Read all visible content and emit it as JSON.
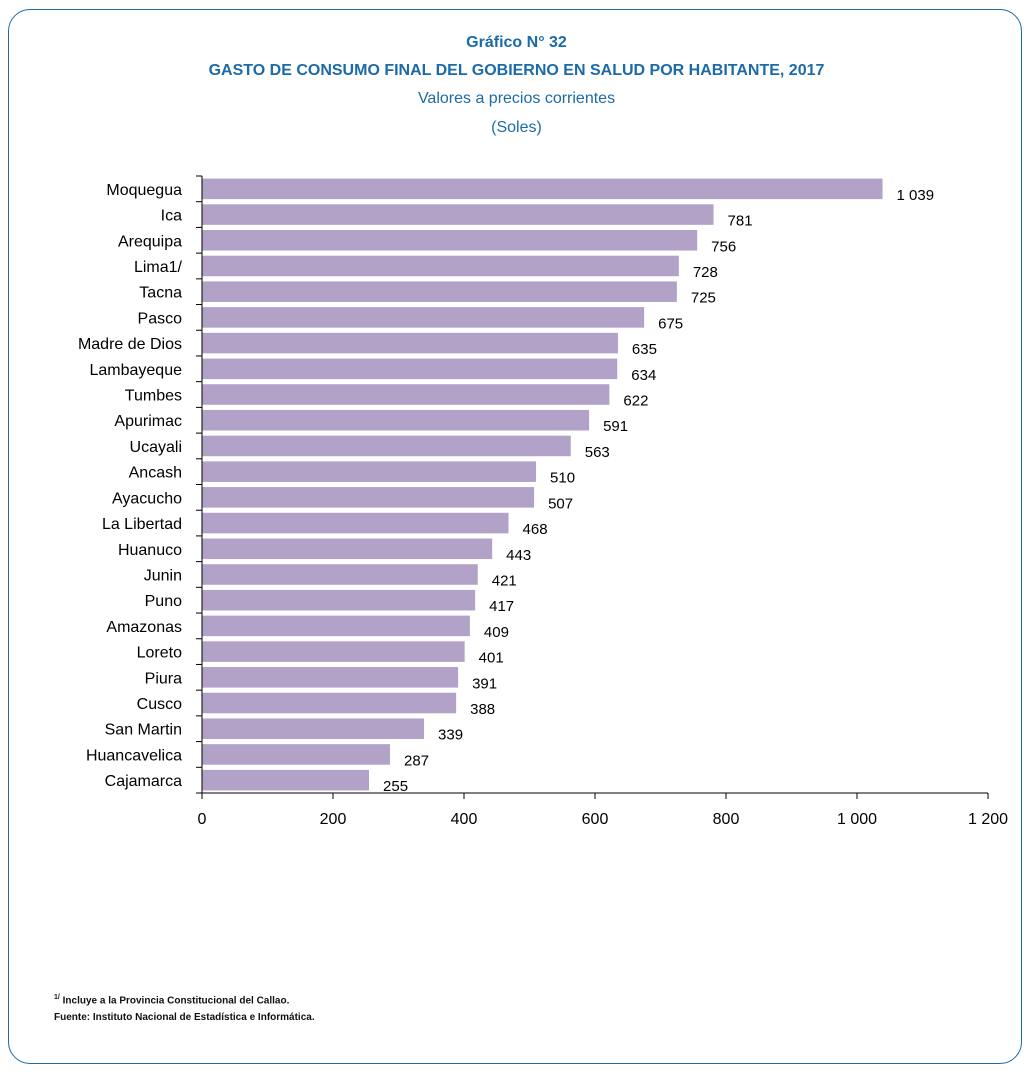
{
  "header": {
    "title": "Gráfico N° 32",
    "subtitle": "GASTO DE CONSUMO FINAL DEL GOBIERNO EN SALUD POR HABITANTE, 2017",
    "note_line1": "Valores a precios corrientes",
    "note_line2": "(Soles)"
  },
  "footer": {
    "footnote_mark": "1/",
    "footnote": "Incluye a la Provincia Constitucional del Callao.",
    "source": "Fuente: Instituto Nacional de Estadística e Informática."
  },
  "colors": {
    "bar": "#b3a2c8",
    "accent": "#1c6aa8",
    "axis": "#000000"
  },
  "chart_data": {
    "type": "bar",
    "orientation": "horizontal",
    "title": "Gráfico N° 32",
    "subtitle": "GASTO DE CONSUMO FINAL DEL GOBIERNO EN SALUD POR HABITANTE, 2017",
    "categories": [
      "Moquegua",
      "Ica",
      "Arequipa",
      "Lima1/",
      "Tacna",
      "Pasco",
      "Madre de Dios",
      "Lambayeque",
      "Tumbes",
      "Apurimac",
      "Ucayali",
      "Ancash",
      "Ayacucho",
      "La Libertad",
      "Huanuco",
      "Junin",
      "Puno",
      "Amazonas",
      "Loreto",
      "Piura",
      "Cusco",
      "San Martin",
      "Huancavelica",
      "Cajamarca"
    ],
    "values": [
      1039,
      781,
      756,
      728,
      725,
      675,
      635,
      634,
      622,
      591,
      563,
      510,
      507,
      468,
      443,
      421,
      417,
      409,
      401,
      391,
      388,
      339,
      287,
      255
    ],
    "value_labels": [
      "1 039",
      "781",
      "756",
      "728",
      "725",
      "675",
      "635",
      "634",
      "622",
      "591",
      "563",
      "510",
      "507",
      "468",
      "443",
      "421",
      "417",
      "409",
      "401",
      "391",
      "388",
      "339",
      "287",
      "255"
    ],
    "xlim": [
      0,
      1200
    ],
    "xticks": [
      0,
      200,
      400,
      600,
      800,
      1000,
      1200
    ],
    "xtick_labels": [
      "0",
      "200",
      "400",
      "600",
      "800",
      "1 000",
      "1 200"
    ],
    "grid": false,
    "legend": "none"
  }
}
